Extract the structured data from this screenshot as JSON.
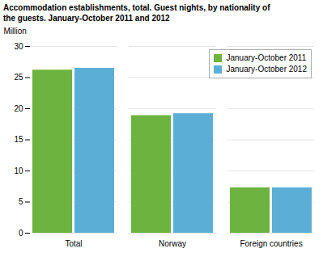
{
  "chart_data": {
    "type": "bar",
    "title": "Accommodation establishments, total. Guest nights, by nationality of\nthe guests. January-October 2011 and 2012",
    "ylabel": "Million",
    "categories": [
      "Total",
      "Norway",
      "Foreign countries"
    ],
    "series": [
      {
        "name": "January-October 2011",
        "color": "#6db33f",
        "values": [
          26.2,
          18.9,
          7.3
        ]
      },
      {
        "name": "January-October 2012",
        "color": "#5bafd6",
        "values": [
          26.5,
          19.2,
          7.3
        ]
      }
    ],
    "ylim": [
      0,
      30
    ],
    "yticks": [
      0,
      5,
      10,
      15,
      20,
      25,
      30
    ],
    "grid": true,
    "legend": "upper right"
  }
}
